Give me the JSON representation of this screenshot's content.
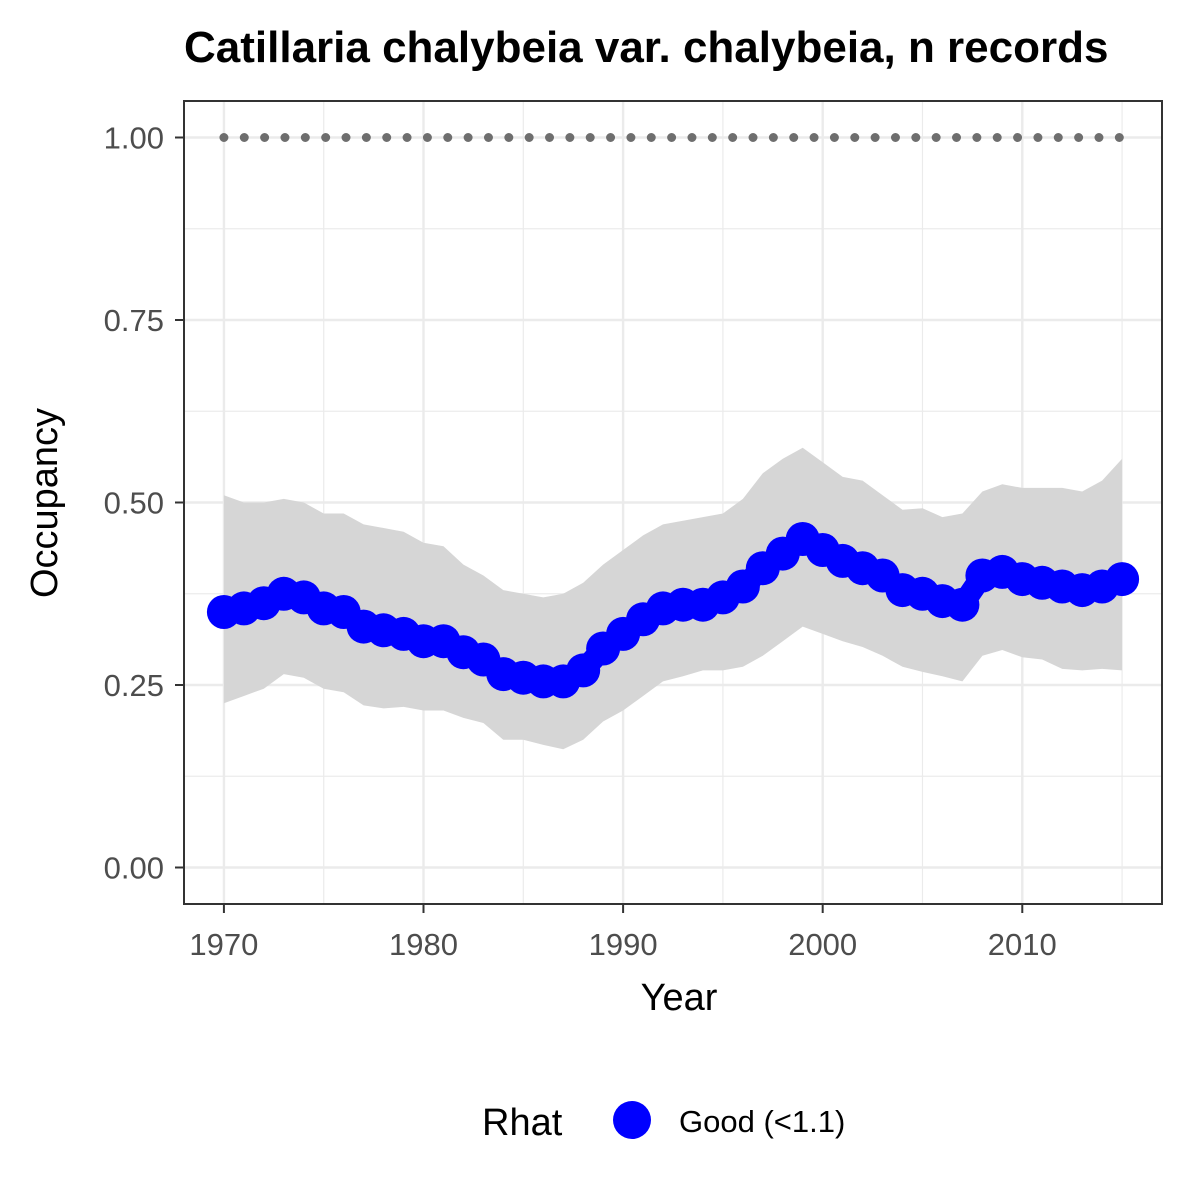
{
  "chart_data": {
    "type": "line",
    "title": "Catillaria chalybeia var. chalybeia, n records",
    "xlabel": "Year",
    "ylabel": "Occupancy",
    "xlim": [
      1968,
      2017
    ],
    "ylim": [
      -0.05,
      1.05
    ],
    "x_ticks": [
      1970,
      1980,
      1990,
      2000,
      2010
    ],
    "x_tick_labels": [
      "1970",
      "1980",
      "1990",
      "2000",
      "2010"
    ],
    "y_ticks": [
      0,
      0.25,
      0.5,
      0.75,
      1.0
    ],
    "y_tick_labels": [
      "0.00",
      "0.25",
      "0.50",
      "0.75",
      "1.00"
    ],
    "grid": true,
    "legend": {
      "position": "bottom",
      "title": "Rhat",
      "entries": [
        {
          "label": "Good (<1.1)",
          "color": "#0000ff"
        }
      ]
    },
    "colors": {
      "series": "#0000ff",
      "ribbon": "#d6d6d6",
      "reference": "#6e6e6e",
      "grid": "#ebebeb",
      "panel_border": "#333333"
    },
    "reference_line": {
      "y": 1.0,
      "style": "dotted"
    },
    "x": [
      1970,
      1971,
      1972,
      1973,
      1974,
      1975,
      1976,
      1977,
      1978,
      1979,
      1980,
      1981,
      1982,
      1983,
      1984,
      1985,
      1986,
      1987,
      1988,
      1989,
      1990,
      1991,
      1992,
      1993,
      1994,
      1995,
      1996,
      1997,
      1998,
      1999,
      2000,
      2001,
      2002,
      2003,
      2004,
      2005,
      2006,
      2007,
      2008,
      2009,
      2010,
      2011,
      2012,
      2013,
      2014,
      2015
    ],
    "series": [
      {
        "values": [
          0.35,
          0.355,
          0.362,
          0.375,
          0.37,
          0.355,
          0.35,
          0.33,
          0.325,
          0.32,
          0.31,
          0.31,
          0.295,
          0.285,
          0.265,
          0.26,
          0.255,
          0.255,
          0.27,
          0.3,
          0.32,
          0.34,
          0.355,
          0.36,
          0.36,
          0.37,
          0.385,
          0.41,
          0.43,
          0.45,
          0.435,
          0.42,
          0.41,
          0.4,
          0.38,
          0.375,
          0.365,
          0.36,
          0.4,
          0.405,
          0.395,
          0.39,
          0.385,
          0.38,
          0.385,
          0.395
        ],
        "lower": [
          0.225,
          0.235,
          0.245,
          0.265,
          0.26,
          0.245,
          0.24,
          0.222,
          0.218,
          0.22,
          0.215,
          0.215,
          0.205,
          0.198,
          0.175,
          0.175,
          0.168,
          0.162,
          0.175,
          0.2,
          0.215,
          0.235,
          0.255,
          0.262,
          0.27,
          0.27,
          0.275,
          0.29,
          0.31,
          0.33,
          0.32,
          0.31,
          0.302,
          0.29,
          0.275,
          0.268,
          0.262,
          0.255,
          0.29,
          0.298,
          0.288,
          0.285,
          0.272,
          0.27,
          0.272,
          0.27
        ],
        "upper": [
          0.51,
          0.5,
          0.5,
          0.505,
          0.5,
          0.485,
          0.485,
          0.47,
          0.465,
          0.46,
          0.445,
          0.44,
          0.415,
          0.4,
          0.38,
          0.375,
          0.37,
          0.375,
          0.39,
          0.415,
          0.435,
          0.455,
          0.47,
          0.475,
          0.48,
          0.485,
          0.505,
          0.54,
          0.56,
          0.575,
          0.555,
          0.535,
          0.53,
          0.51,
          0.49,
          0.492,
          0.48,
          0.485,
          0.515,
          0.525,
          0.52,
          0.52,
          0.52,
          0.515,
          0.53,
          0.56
        ]
      }
    ]
  }
}
